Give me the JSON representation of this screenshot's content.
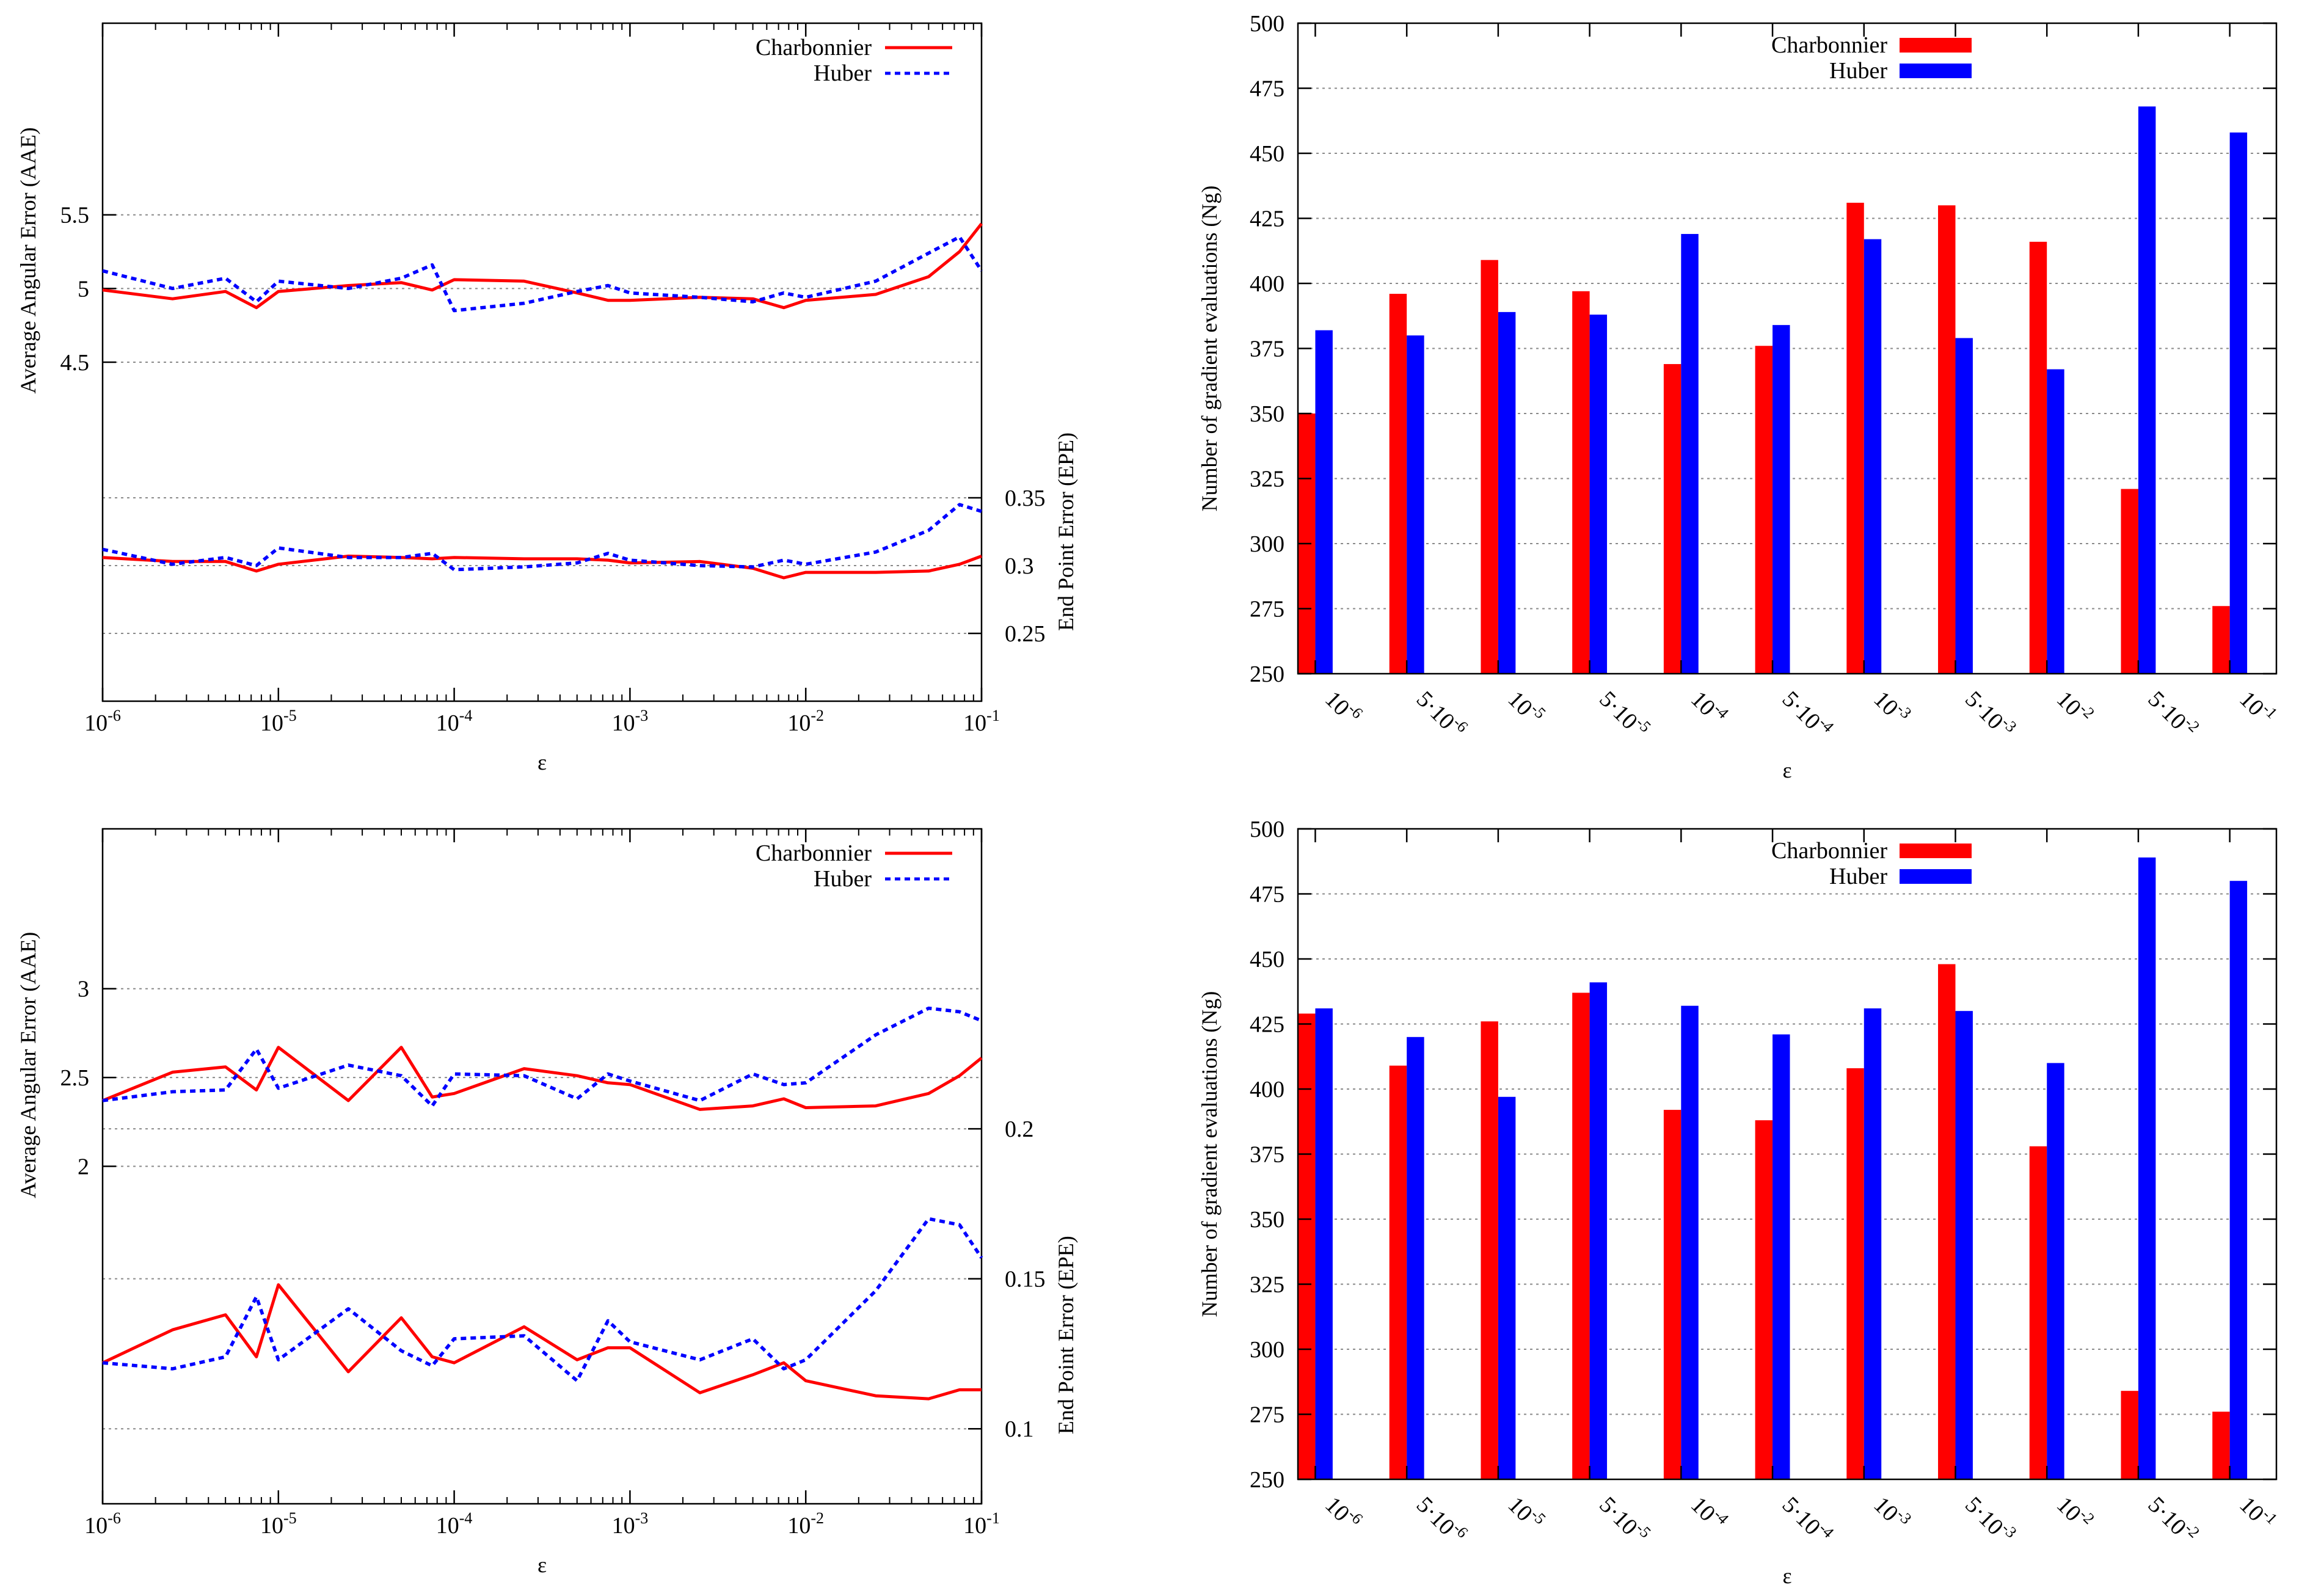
{
  "chart_data": [
    {
      "type": "line",
      "panel": "top-left",
      "xlabel": "ε",
      "ylabel_left": "Average Angular Error (AAE)",
      "ylabel_right": "End Point Error (EPE)",
      "xscale": "log",
      "xlim": [
        1e-06,
        0.1
      ],
      "x_ticks": [
        {
          "base": "10",
          "exp": "-6"
        },
        {
          "base": "10",
          "exp": "-5"
        },
        {
          "base": "10",
          "exp": "-4"
        },
        {
          "base": "10",
          "exp": "-3"
        },
        {
          "base": "10",
          "exp": "-2"
        },
        {
          "base": "10",
          "exp": "-1"
        }
      ],
      "aae_ylim": [
        2.2,
        6.8
      ],
      "aae_ticks": [
        {
          "v": 4.5,
          "label": "4.5"
        },
        {
          "v": 5,
          "label": "5"
        },
        {
          "v": 5.5,
          "label": "5.5"
        }
      ],
      "epe_ylim": [
        0.2,
        0.7
      ],
      "epe_ticks": [
        {
          "v": 0.25,
          "label": "0.25"
        },
        {
          "v": 0.3,
          "label": "0.3"
        },
        {
          "v": 0.35,
          "label": "0.35"
        }
      ],
      "legend": {
        "position": "top-right",
        "entries": [
          {
            "name": "Charbonnier",
            "color": "#ff0000",
            "style": "solid"
          },
          {
            "name": "Huber",
            "color": "#0000ff",
            "style": "dotted"
          }
        ]
      },
      "x": [
        1e-06,
        2.5e-06,
        5e-06,
        7.5e-06,
        1e-05,
        2.5e-05,
        5e-05,
        7.5e-05,
        0.0001,
        0.00025,
        0.0005,
        0.00075,
        0.001,
        0.0025,
        0.005,
        0.0075,
        0.01,
        0.025,
        0.05,
        0.075,
        0.1
      ],
      "series": [
        {
          "name": "Charbonnier",
          "metric": "AAE",
          "color": "#ff0000",
          "style": "solid",
          "values": [
            4.99,
            4.93,
            4.98,
            4.87,
            4.98,
            5.02,
            5.04,
            4.99,
            5.06,
            5.05,
            4.97,
            4.92,
            4.92,
            4.94,
            4.93,
            4.87,
            4.92,
            4.96,
            5.08,
            5.25,
            5.44
          ]
        },
        {
          "name": "Huber",
          "metric": "AAE",
          "color": "#0000ff",
          "style": "dotted",
          "values": [
            5.12,
            5.0,
            5.07,
            4.91,
            5.05,
            5.0,
            5.07,
            5.16,
            4.85,
            4.9,
            4.98,
            5.02,
            4.97,
            4.94,
            4.91,
            4.97,
            4.94,
            5.05,
            5.24,
            5.35,
            5.12
          ]
        },
        {
          "name": "Charbonnier",
          "metric": "EPE",
          "color": "#ff0000",
          "style": "solid",
          "values": [
            0.306,
            0.303,
            0.303,
            0.296,
            0.301,
            0.307,
            0.306,
            0.305,
            0.306,
            0.305,
            0.305,
            0.304,
            0.302,
            0.303,
            0.298,
            0.291,
            0.295,
            0.295,
            0.296,
            0.301,
            0.307
          ]
        },
        {
          "name": "Huber",
          "metric": "EPE",
          "color": "#0000ff",
          "style": "dotted",
          "values": [
            0.312,
            0.301,
            0.306,
            0.3,
            0.313,
            0.306,
            0.306,
            0.309,
            0.297,
            0.299,
            0.302,
            0.309,
            0.304,
            0.3,
            0.299,
            0.304,
            0.301,
            0.31,
            0.326,
            0.345,
            0.34
          ]
        }
      ]
    },
    {
      "type": "bar",
      "panel": "top-right",
      "xlabel": "ε",
      "ylabel": "Number of gradient evaluations (Ng)",
      "ylim": [
        250,
        500
      ],
      "y_ticks": [
        250,
        275,
        300,
        325,
        350,
        375,
        400,
        425,
        450,
        475,
        500
      ],
      "categories": [
        {
          "coef": "",
          "base": "10",
          "exp": "-6"
        },
        {
          "coef": "5·",
          "base": "10",
          "exp": "-6"
        },
        {
          "coef": "",
          "base": "10",
          "exp": "-5"
        },
        {
          "coef": "5·",
          "base": "10",
          "exp": "-5"
        },
        {
          "coef": "",
          "base": "10",
          "exp": "-4"
        },
        {
          "coef": "5·",
          "base": "10",
          "exp": "-4"
        },
        {
          "coef": "",
          "base": "10",
          "exp": "-3"
        },
        {
          "coef": "5·",
          "base": "10",
          "exp": "-3"
        },
        {
          "coef": "",
          "base": "10",
          "exp": "-2"
        },
        {
          "coef": "5·",
          "base": "10",
          "exp": "-2"
        },
        {
          "coef": "",
          "base": "10",
          "exp": "-1"
        }
      ],
      "legend": {
        "position": "top-left",
        "entries": [
          {
            "name": "Charbonnier",
            "color": "#ff0000"
          },
          {
            "name": "Huber",
            "color": "#0000ff"
          }
        ]
      },
      "series": [
        {
          "name": "Charbonnier",
          "color": "#ff0000",
          "values": [
            350,
            396,
            409,
            397,
            369,
            376,
            431,
            430,
            416,
            321,
            276
          ]
        },
        {
          "name": "Huber",
          "color": "#0000ff",
          "values": [
            382,
            380,
            389,
            388,
            419,
            384,
            417,
            379,
            367,
            468,
            458
          ]
        }
      ]
    },
    {
      "type": "line",
      "panel": "bottom-left",
      "xlabel": "ε",
      "ylabel_left": "Average Angular Error (AAE)",
      "ylabel_right": "End Point Error (EPE)",
      "xscale": "log",
      "xlim": [
        1e-06,
        0.1
      ],
      "x_ticks": [
        {
          "base": "10",
          "exp": "-6"
        },
        {
          "base": "10",
          "exp": "-5"
        },
        {
          "base": "10",
          "exp": "-4"
        },
        {
          "base": "10",
          "exp": "-3"
        },
        {
          "base": "10",
          "exp": "-2"
        },
        {
          "base": "10",
          "exp": "-1"
        }
      ],
      "aae_ylim": [
        0.1,
        3.9
      ],
      "aae_ticks": [
        {
          "v": 2,
          "label": "2"
        },
        {
          "v": 2.5,
          "label": "2.5"
        },
        {
          "v": 3,
          "label": "3"
        }
      ],
      "epe_ylim": [
        0.075,
        0.3
      ],
      "epe_ticks": [
        {
          "v": 0.1,
          "label": "0.1"
        },
        {
          "v": 0.15,
          "label": "0.15"
        },
        {
          "v": 0.2,
          "label": "0.2"
        }
      ],
      "legend": {
        "position": "top-right",
        "entries": [
          {
            "name": "Charbonnier",
            "color": "#ff0000",
            "style": "solid"
          },
          {
            "name": "Huber",
            "color": "#0000ff",
            "style": "dotted"
          }
        ]
      },
      "x": [
        1e-06,
        2.5e-06,
        5e-06,
        7.5e-06,
        1e-05,
        2.5e-05,
        5e-05,
        7.5e-05,
        0.0001,
        0.00025,
        0.0005,
        0.00075,
        0.001,
        0.0025,
        0.005,
        0.0075,
        0.01,
        0.025,
        0.05,
        0.075,
        0.1
      ],
      "series": [
        {
          "name": "Charbonnier",
          "metric": "AAE",
          "color": "#ff0000",
          "style": "solid",
          "values": [
            2.37,
            2.53,
            2.56,
            2.43,
            2.67,
            2.37,
            2.67,
            2.39,
            2.41,
            2.55,
            2.51,
            2.47,
            2.46,
            2.32,
            2.34,
            2.38,
            2.33,
            2.34,
            2.41,
            2.51,
            2.61
          ]
        },
        {
          "name": "Huber",
          "metric": "AAE",
          "color": "#0000ff",
          "style": "dotted",
          "values": [
            2.37,
            2.42,
            2.43,
            2.66,
            2.44,
            2.57,
            2.51,
            2.34,
            2.52,
            2.51,
            2.38,
            2.52,
            2.48,
            2.37,
            2.52,
            2.46,
            2.47,
            2.74,
            2.89,
            2.87,
            2.82
          ]
        },
        {
          "name": "Charbonnier",
          "metric": "EPE",
          "color": "#ff0000",
          "style": "solid",
          "values": [
            0.122,
            0.133,
            0.138,
            0.124,
            0.148,
            0.119,
            0.137,
            0.124,
            0.122,
            0.134,
            0.123,
            0.127,
            0.127,
            0.112,
            0.118,
            0.122,
            0.116,
            0.111,
            0.11,
            0.113,
            0.113
          ]
        },
        {
          "name": "Huber",
          "metric": "EPE",
          "color": "#0000ff",
          "style": "dotted",
          "values": [
            0.122,
            0.12,
            0.124,
            0.144,
            0.123,
            0.14,
            0.126,
            0.121,
            0.13,
            0.131,
            0.116,
            0.136,
            0.129,
            0.123,
            0.13,
            0.12,
            0.123,
            0.146,
            0.17,
            0.168,
            0.157
          ]
        }
      ]
    },
    {
      "type": "bar",
      "panel": "bottom-right",
      "xlabel": "ε",
      "ylabel": "Number of gradient evaluations (Ng)",
      "ylim": [
        250,
        500
      ],
      "y_ticks": [
        250,
        275,
        300,
        325,
        350,
        375,
        400,
        425,
        450,
        475,
        500
      ],
      "categories": [
        {
          "coef": "",
          "base": "10",
          "exp": "-6"
        },
        {
          "coef": "5·",
          "base": "10",
          "exp": "-6"
        },
        {
          "coef": "",
          "base": "10",
          "exp": "-5"
        },
        {
          "coef": "5·",
          "base": "10",
          "exp": "-5"
        },
        {
          "coef": "",
          "base": "10",
          "exp": "-4"
        },
        {
          "coef": "5·",
          "base": "10",
          "exp": "-4"
        },
        {
          "coef": "",
          "base": "10",
          "exp": "-3"
        },
        {
          "coef": "5·",
          "base": "10",
          "exp": "-3"
        },
        {
          "coef": "",
          "base": "10",
          "exp": "-2"
        },
        {
          "coef": "5·",
          "base": "10",
          "exp": "-2"
        },
        {
          "coef": "",
          "base": "10",
          "exp": "-1"
        }
      ],
      "legend": {
        "position": "top-left",
        "entries": [
          {
            "name": "Charbonnier",
            "color": "#ff0000"
          },
          {
            "name": "Huber",
            "color": "#0000ff"
          }
        ]
      },
      "series": [
        {
          "name": "Charbonnier",
          "color": "#ff0000",
          "values": [
            429,
            409,
            426,
            437,
            392,
            388,
            408,
            448,
            378,
            284,
            276
          ]
        },
        {
          "name": "Huber",
          "color": "#0000ff",
          "values": [
            431,
            420,
            397,
            441,
            432,
            421,
            431,
            430,
            410,
            489,
            480
          ]
        }
      ]
    }
  ]
}
